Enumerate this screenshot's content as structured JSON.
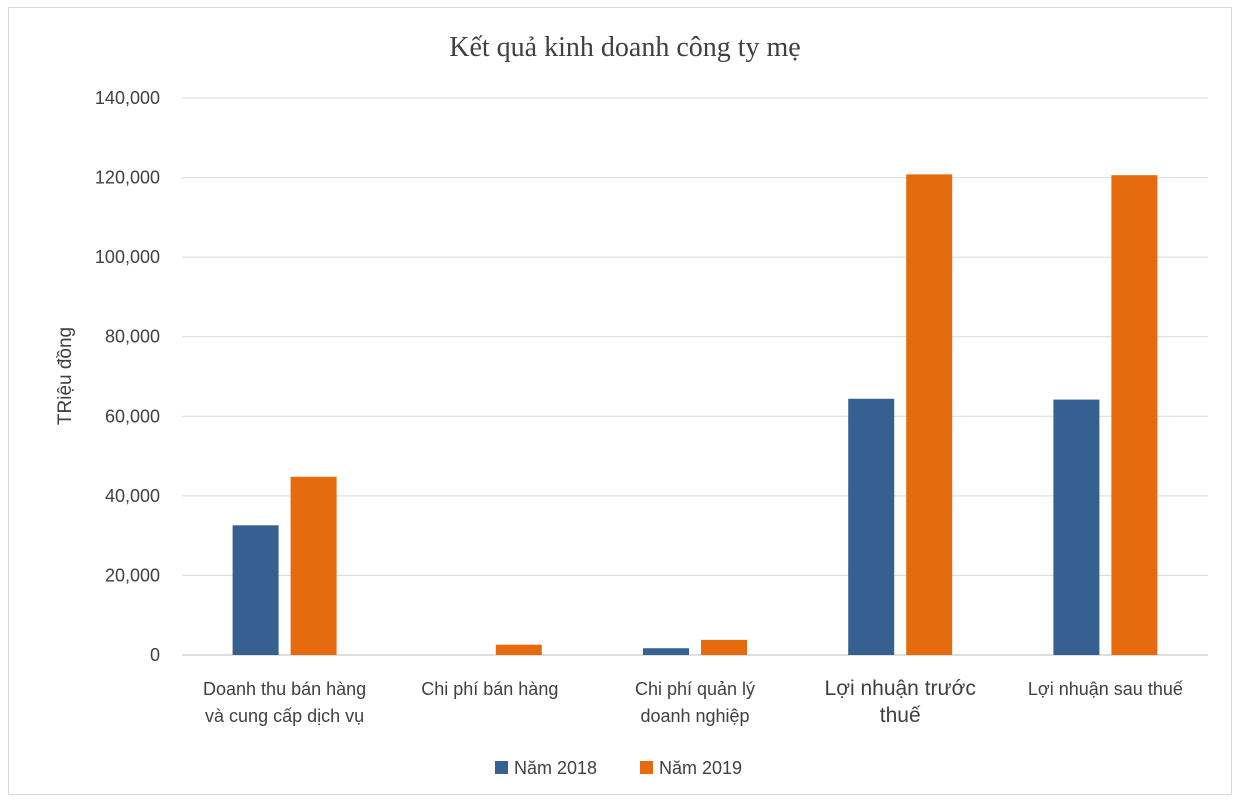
{
  "chart_data": {
    "type": "bar",
    "title": "Kết quả kinh doanh công ty mẹ",
    "ylabel": "TRiệu đồng",
    "xlabel": "",
    "ylim": [
      0,
      140000
    ],
    "yticks": [
      "0",
      "20,000",
      "40,000",
      "60,000",
      "80,000",
      "100,000",
      "120,000",
      "140,000"
    ],
    "grid": true,
    "legend_position": "bottom",
    "categories": [
      [
        "Doanh thu bán hàng",
        "và cung cấp dịch vụ"
      ],
      [
        "Chi phí bán  hàng"
      ],
      [
        "Chi phí quản lý",
        "doanh nghiệp"
      ],
      [
        "Lợi nhuận trước",
        "thuế"
      ],
      [
        "Lợi nhuận sau thuế"
      ]
    ],
    "series": [
      {
        "name": "Năm 2018",
        "color": "#35608f",
        "values": [
          32600,
          0,
          1700,
          64400,
          64200
        ]
      },
      {
        "name": "Năm 2019",
        "color": "#e56b0e",
        "values": [
          44800,
          2600,
          3800,
          120800,
          120600
        ]
      }
    ]
  }
}
